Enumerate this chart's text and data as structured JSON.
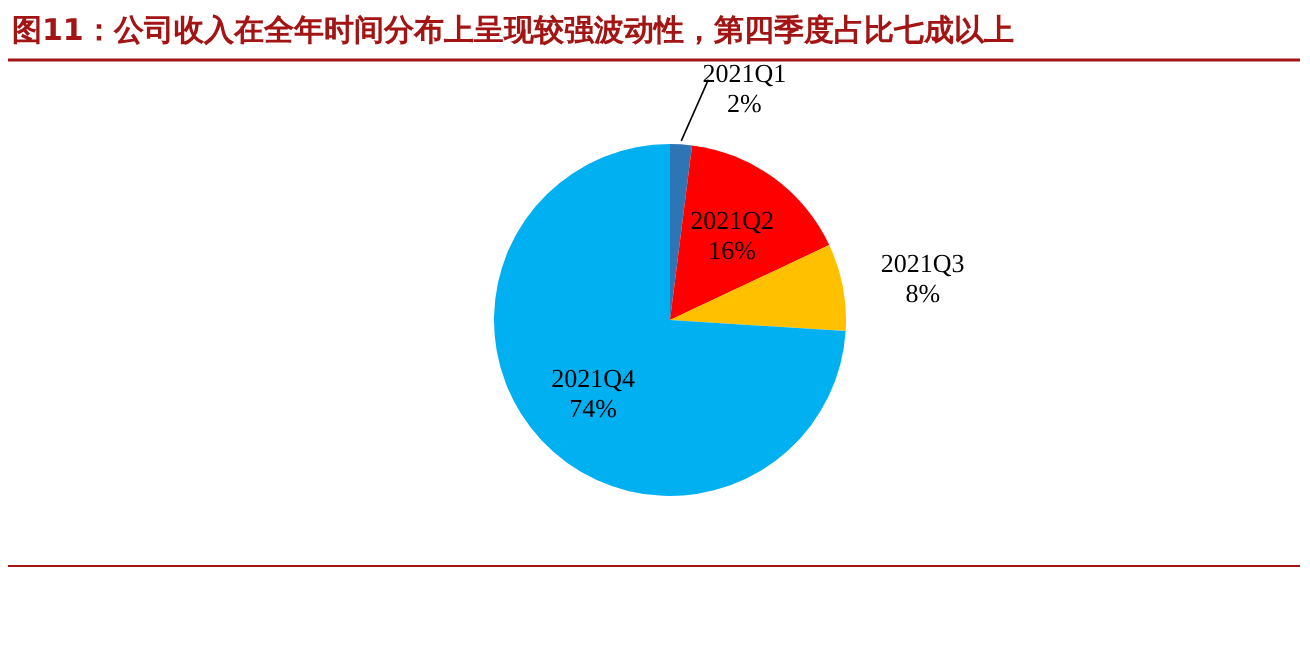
{
  "chart_data": {
    "type": "pie",
    "title": "图11：公司收入在全年时间分布上呈现较强波动性，第四季度占比七成以上",
    "categories": [
      "2021Q1",
      "2021Q2",
      "2021Q3",
      "2021Q4"
    ],
    "values": [
      2,
      16,
      8,
      74
    ],
    "colors": [
      "#2e75b6",
      "#ff0000",
      "#ffc000",
      "#00b0f0"
    ],
    "value_labels": [
      "2%",
      "16%",
      "8%",
      "74%"
    ],
    "legend": false
  }
}
